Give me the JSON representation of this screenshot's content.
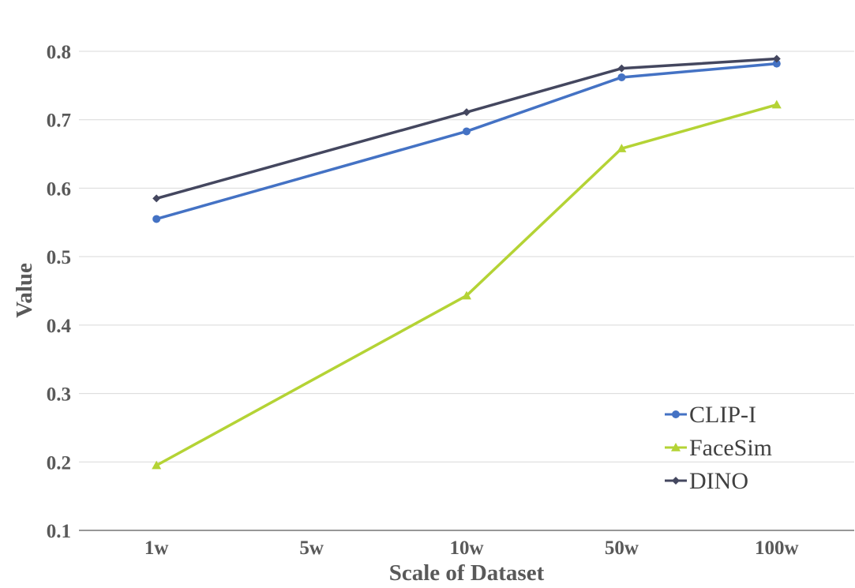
{
  "chart_data": {
    "type": "line",
    "title": "",
    "xlabel": "Scale of Dataset",
    "ylabel": "Value",
    "categories": [
      "1w",
      "5w",
      "10w",
      "50w",
      "100w"
    ],
    "ylim": [
      0.1,
      0.8
    ],
    "yticks": [
      "0.1",
      "0.2",
      "0.3",
      "0.4",
      "0.5",
      "0.6",
      "0.7",
      "0.8"
    ],
    "grid": "horizontal",
    "legend_position": "bottom-right",
    "series": [
      {
        "name": "CLIP-I",
        "color": "#4472C4",
        "marker": "circle",
        "points": [
          {
            "x": "1w",
            "y": 0.555
          },
          {
            "x": "10w",
            "y": 0.683
          },
          {
            "x": "50w",
            "y": 0.762
          },
          {
            "x": "100w",
            "y": 0.782
          }
        ]
      },
      {
        "name": "FaceSim",
        "color": "#B4D335",
        "marker": "triangle",
        "points": [
          {
            "x": "1w",
            "y": 0.195
          },
          {
            "x": "10w",
            "y": 0.443
          },
          {
            "x": "50w",
            "y": 0.658
          },
          {
            "x": "100w",
            "y": 0.722
          }
        ]
      },
      {
        "name": "DINO",
        "color": "#44475F",
        "marker": "diamond",
        "points": [
          {
            "x": "1w",
            "y": 0.585
          },
          {
            "x": "10w",
            "y": 0.711
          },
          {
            "x": "50w",
            "y": 0.775
          },
          {
            "x": "100w",
            "y": 0.789
          }
        ]
      }
    ]
  }
}
